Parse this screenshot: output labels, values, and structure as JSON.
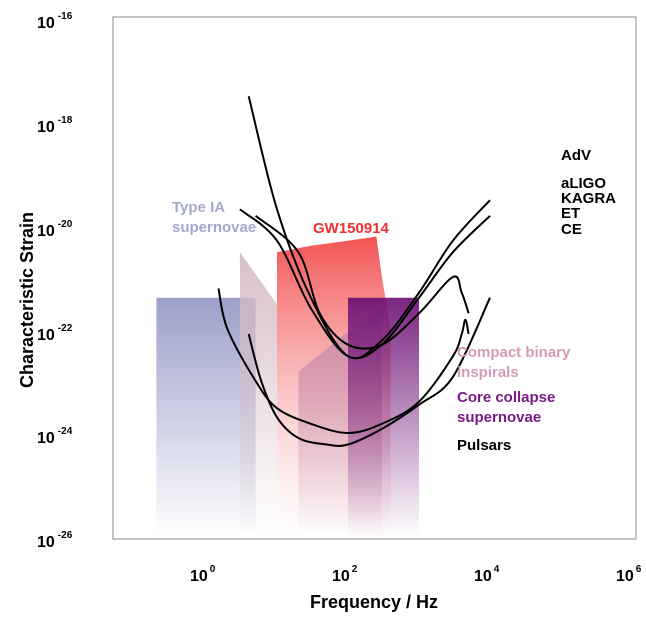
{
  "chart_data": {
    "type": "area",
    "title": "",
    "xlabel": "Frequency / Hz",
    "ylabel": "Characteristic Strain",
    "x_scale": "log",
    "y_scale": "log",
    "xlim": [
      0.01,
      1000000
    ],
    "ylim": [
      1e-26,
      1e-16
    ],
    "grid": false,
    "x_ticks": [
      {
        "base": "10",
        "exp": "0",
        "value": 1
      },
      {
        "base": "10",
        "exp": "2",
        "value": 100
      },
      {
        "base": "10",
        "exp": "4",
        "value": 10000
      },
      {
        "base": "10",
        "exp": "6",
        "value": 1000000
      }
    ],
    "y_ticks": [
      {
        "base": "10",
        "exp": "-16",
        "value": 1e-16
      },
      {
        "base": "10",
        "exp": "-18",
        "value": 1e-18
      },
      {
        "base": "10",
        "exp": "-20",
        "value": 1e-20
      },
      {
        "base": "10",
        "exp": "-22",
        "value": 1e-22
      },
      {
        "base": "10",
        "exp": "-24",
        "value": 1e-24
      },
      {
        "base": "10",
        "exp": "-26",
        "value": 1e-26
      }
    ],
    "regions": [
      {
        "name": "Pulsars",
        "color": "#8a8fc0",
        "x": [
          0.2,
          5
        ],
        "y_top": 4e-22,
        "fade": true
      },
      {
        "name": "Type IA supernovae",
        "label_lines": [
          "Type IA",
          "supernovae"
        ],
        "color": "#dcc0c8",
        "x": [
          3,
          10
        ],
        "y_top": 3e-21,
        "y_top_end": 3e-22,
        "fade": true
      },
      {
        "name": "GW150914",
        "color": "#f05858",
        "x": [
          10,
          400
        ],
        "y_top_points": [
          [
            10,
            3e-21
          ],
          [
            30,
            4e-21
          ],
          [
            100,
            5e-21
          ],
          [
            250,
            6e-21
          ],
          [
            300,
            1e-21
          ],
          [
            400,
            1e-22
          ]
        ],
        "fade": true
      },
      {
        "name": "Compact binary inspirals",
        "label_lines": [
          "Compact binary",
          "inspirals"
        ],
        "color": "#c07aa0",
        "x": [
          20,
          300
        ],
        "y_top_points": [
          [
            20,
            1.5e-23
          ],
          [
            300,
            3e-22
          ]
        ],
        "fade": true
      },
      {
        "name": "Core collapse supernovae",
        "label_lines": [
          "Core collapse",
          "supernovae"
        ],
        "color": "#6a1070",
        "x": [
          100,
          1000
        ],
        "y_top": 4e-22,
        "fade": true
      }
    ],
    "detectors": [
      {
        "name": "AdV",
        "points": [
          [
            4,
            3e-18
          ],
          [
            10,
            2e-20
          ],
          [
            30,
            4e-22
          ],
          [
            100,
            3e-23
          ],
          [
            300,
            6e-23
          ],
          [
            1000,
            5e-22
          ],
          [
            3000,
            5e-21
          ],
          [
            10000,
            3e-20
          ]
        ]
      },
      {
        "name": "aLIGO",
        "points": [
          [
            3,
            2e-20
          ],
          [
            10,
            5e-21
          ],
          [
            30,
            2.5e-22
          ],
          [
            100,
            3e-23
          ],
          [
            300,
            5e-23
          ],
          [
            1000,
            4e-22
          ],
          [
            3000,
            3e-21
          ],
          [
            10000,
            1.5e-20
          ]
        ]
      },
      {
        "name": "KAGRA",
        "points": [
          [
            5,
            1.5e-20
          ],
          [
            20,
            3e-21
          ],
          [
            40,
            2e-22
          ],
          [
            100,
            5e-23
          ],
          [
            300,
            5e-23
          ],
          [
            1000,
            2e-22
          ],
          [
            3000,
            1e-21
          ],
          [
            4000,
            5e-22
          ],
          [
            5000,
            2e-22
          ]
        ]
      },
      {
        "name": "ET",
        "points": [
          [
            1.5,
            6e-22
          ],
          [
            2,
            1e-22
          ],
          [
            5,
            1e-23
          ],
          [
            10,
            3e-24
          ],
          [
            30,
            1.5e-24
          ],
          [
            100,
            1e-24
          ],
          [
            300,
            1.5e-24
          ],
          [
            1000,
            4e-24
          ],
          [
            3000,
            3e-23
          ],
          [
            4000,
            8e-23
          ],
          [
            4500,
            1.5e-22
          ],
          [
            5000,
            8e-23
          ]
        ]
      },
      {
        "name": "CE",
        "points": [
          [
            4,
            8e-23
          ],
          [
            6,
            1e-23
          ],
          [
            10,
            2e-24
          ],
          [
            20,
            8e-25
          ],
          [
            50,
            6e-25
          ],
          [
            100,
            6e-25
          ],
          [
            300,
            1.2e-24
          ],
          [
            1000,
            3.5e-24
          ],
          [
            3000,
            1.2e-23
          ],
          [
            10000,
            4e-22
          ]
        ]
      }
    ],
    "detector_labels": [
      "AdV",
      "aLIGO",
      "KAGRA",
      "ET",
      "CE"
    ],
    "region_labels": {
      "type_ia": [
        "Type IA",
        "supernovae"
      ],
      "gw150914": "GW150914",
      "compact_binary": [
        "Compact binary",
        "inspirals"
      ],
      "core_collapse": [
        "Core collapse",
        "supernovae"
      ],
      "pulsars": "Pulsars"
    },
    "colors": {
      "pulsars": "#8a8fc0",
      "type_ia": "#d6bcc6",
      "type_ia_label": "#a3a8cc",
      "gw150914": "#f24a4a",
      "compact_binary": "#c58aa8",
      "compact_binary_label": "#d49ab8",
      "core_collapse": "#6e1276",
      "core_collapse_label": "#7a1a86",
      "detector_curve": "#000000"
    }
  }
}
